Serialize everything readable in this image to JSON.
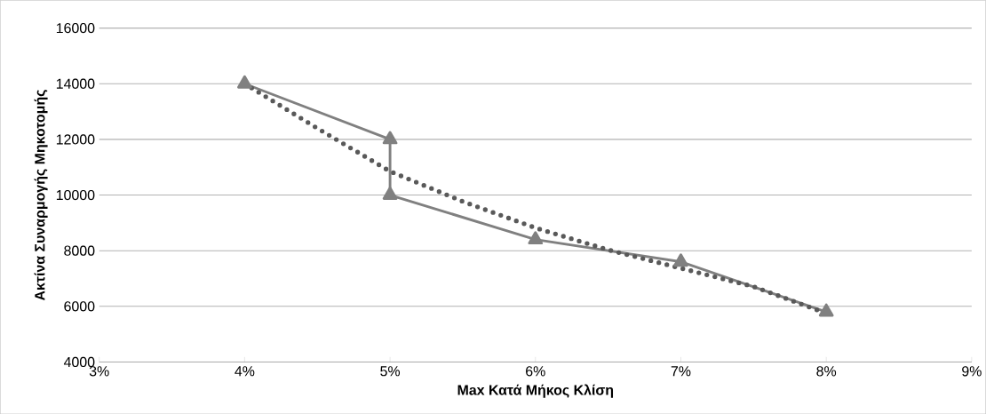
{
  "chart_data": {
    "type": "line",
    "xlabel": "Max Κατά Μήκος Κλίση",
    "ylabel": "Ακτίνα Συναρμογής Μηκοτομής",
    "xlim": [
      3,
      9
    ],
    "xticks": [
      {
        "value": 3,
        "label": "3%"
      },
      {
        "value": 4,
        "label": "4%"
      },
      {
        "value": 5,
        "label": "5%"
      },
      {
        "value": 6,
        "label": "6%"
      },
      {
        "value": 7,
        "label": "7%"
      },
      {
        "value": 8,
        "label": "8%"
      },
      {
        "value": 9,
        "label": "9%"
      }
    ],
    "ylim": [
      4000,
      16000
    ],
    "yticks": [
      4000,
      6000,
      8000,
      10000,
      12000,
      14000,
      16000
    ],
    "grid": "y",
    "series": [
      {
        "color": "#808080",
        "marker": "triangle",
        "line_style": "solid",
        "x": [
          4,
          5,
          5,
          6,
          7,
          8
        ],
        "values": [
          14000,
          12000,
          10000,
          8400,
          7600,
          5800
        ]
      },
      {
        "color": "#595959",
        "marker": "none",
        "line_style": "dotted",
        "x": [
          4,
          4.5,
          5,
          5.5,
          6,
          6.5,
          7,
          7.5,
          8
        ],
        "values": [
          14000,
          12400,
          10850,
          9770,
          8820,
          8030,
          7370,
          6710,
          5750
        ]
      }
    ]
  }
}
